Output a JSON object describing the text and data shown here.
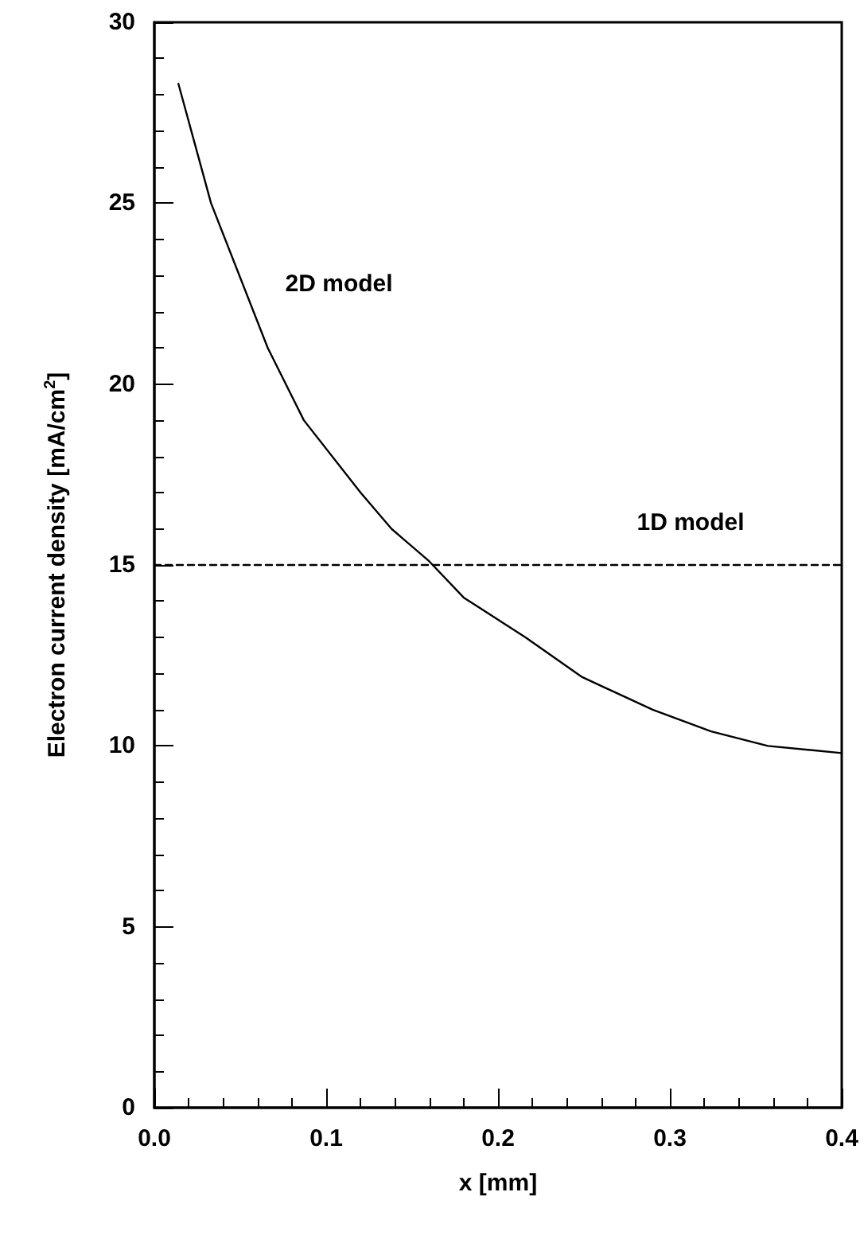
{
  "chart_data": {
    "type": "line",
    "xlabel": "x [mm]",
    "ylabel": "Electron current density [mA/cm$^{2}$]",
    "series": [
      {
        "name": "2D model",
        "color": "#000000",
        "line_style": "solid",
        "x": [
          0.014,
          0.033,
          0.066,
          0.087,
          0.12,
          0.138,
          0.16,
          0.18,
          0.216,
          0.249,
          0.29,
          0.324,
          0.357,
          0.4
        ],
        "values": [
          28.3,
          25.0,
          21.0,
          19.0,
          17.0,
          16.0,
          15.1,
          14.1,
          13.0,
          11.9,
          11.0,
          10.4,
          10.0,
          9.8
        ]
      },
      {
        "name": "1D model",
        "color": "#000000",
        "line_style": "dashed",
        "x": [
          0.0,
          0.4
        ],
        "values": [
          15.0,
          15.0
        ]
      }
    ],
    "xlim": [
      0,
      0.4
    ],
    "xticks": [
      {
        "value": 0,
        "label": "0.0"
      },
      {
        "value": 0.02,
        "label": null
      },
      {
        "value": 0.04,
        "label": null
      },
      {
        "value": 0.06,
        "label": null
      },
      {
        "value": 0.08,
        "label": null
      },
      {
        "value": 0.1,
        "label": "0.1"
      },
      {
        "value": 0.12,
        "label": null
      },
      {
        "value": 0.14,
        "label": null
      },
      {
        "value": 0.16,
        "label": null
      },
      {
        "value": 0.18,
        "label": null
      },
      {
        "value": 0.2,
        "label": "0.2"
      },
      {
        "value": 0.22,
        "label": null
      },
      {
        "value": 0.24,
        "label": null
      },
      {
        "value": 0.26,
        "label": null
      },
      {
        "value": 0.28,
        "label": null
      },
      {
        "value": 0.3,
        "label": "0.3"
      },
      {
        "value": 0.32,
        "label": null
      },
      {
        "value": 0.34,
        "label": null
      },
      {
        "value": 0.36,
        "label": null
      },
      {
        "value": 0.38,
        "label": null
      },
      {
        "value": 0.4,
        "label": "0.4"
      }
    ],
    "ylim": [
      0,
      30
    ],
    "yticks": [
      0,
      {
        "value": 1,
        "label": null
      },
      {
        "value": 2,
        "label": null
      },
      {
        "value": 3,
        "label": null
      },
      {
        "value": 4,
        "label": null
      },
      5,
      {
        "value": 6,
        "label": null
      },
      {
        "value": 7,
        "label": null
      },
      {
        "value": 8,
        "label": null
      },
      {
        "value": 9,
        "label": null
      },
      10,
      {
        "value": 11,
        "label": null
      },
      {
        "value": 12,
        "label": null
      },
      {
        "value": 13,
        "label": null
      },
      {
        "value": 14,
        "label": null
      },
      15,
      {
        "value": 16,
        "label": null
      },
      {
        "value": 17,
        "label": null
      },
      {
        "value": 18,
        "label": null
      },
      {
        "value": 19,
        "label": null
      },
      20,
      {
        "value": 21,
        "label": null
      },
      {
        "value": 22,
        "label": null
      },
      {
        "value": 23,
        "label": null
      },
      {
        "value": 24,
        "label": null
      },
      25,
      {
        "value": 26,
        "label": null
      },
      {
        "value": 27,
        "label": null
      },
      {
        "value": 28,
        "label": null
      },
      {
        "value": 29,
        "label": null
      },
      30
    ],
    "grid": false,
    "legend": false,
    "marker": "none"
  }
}
